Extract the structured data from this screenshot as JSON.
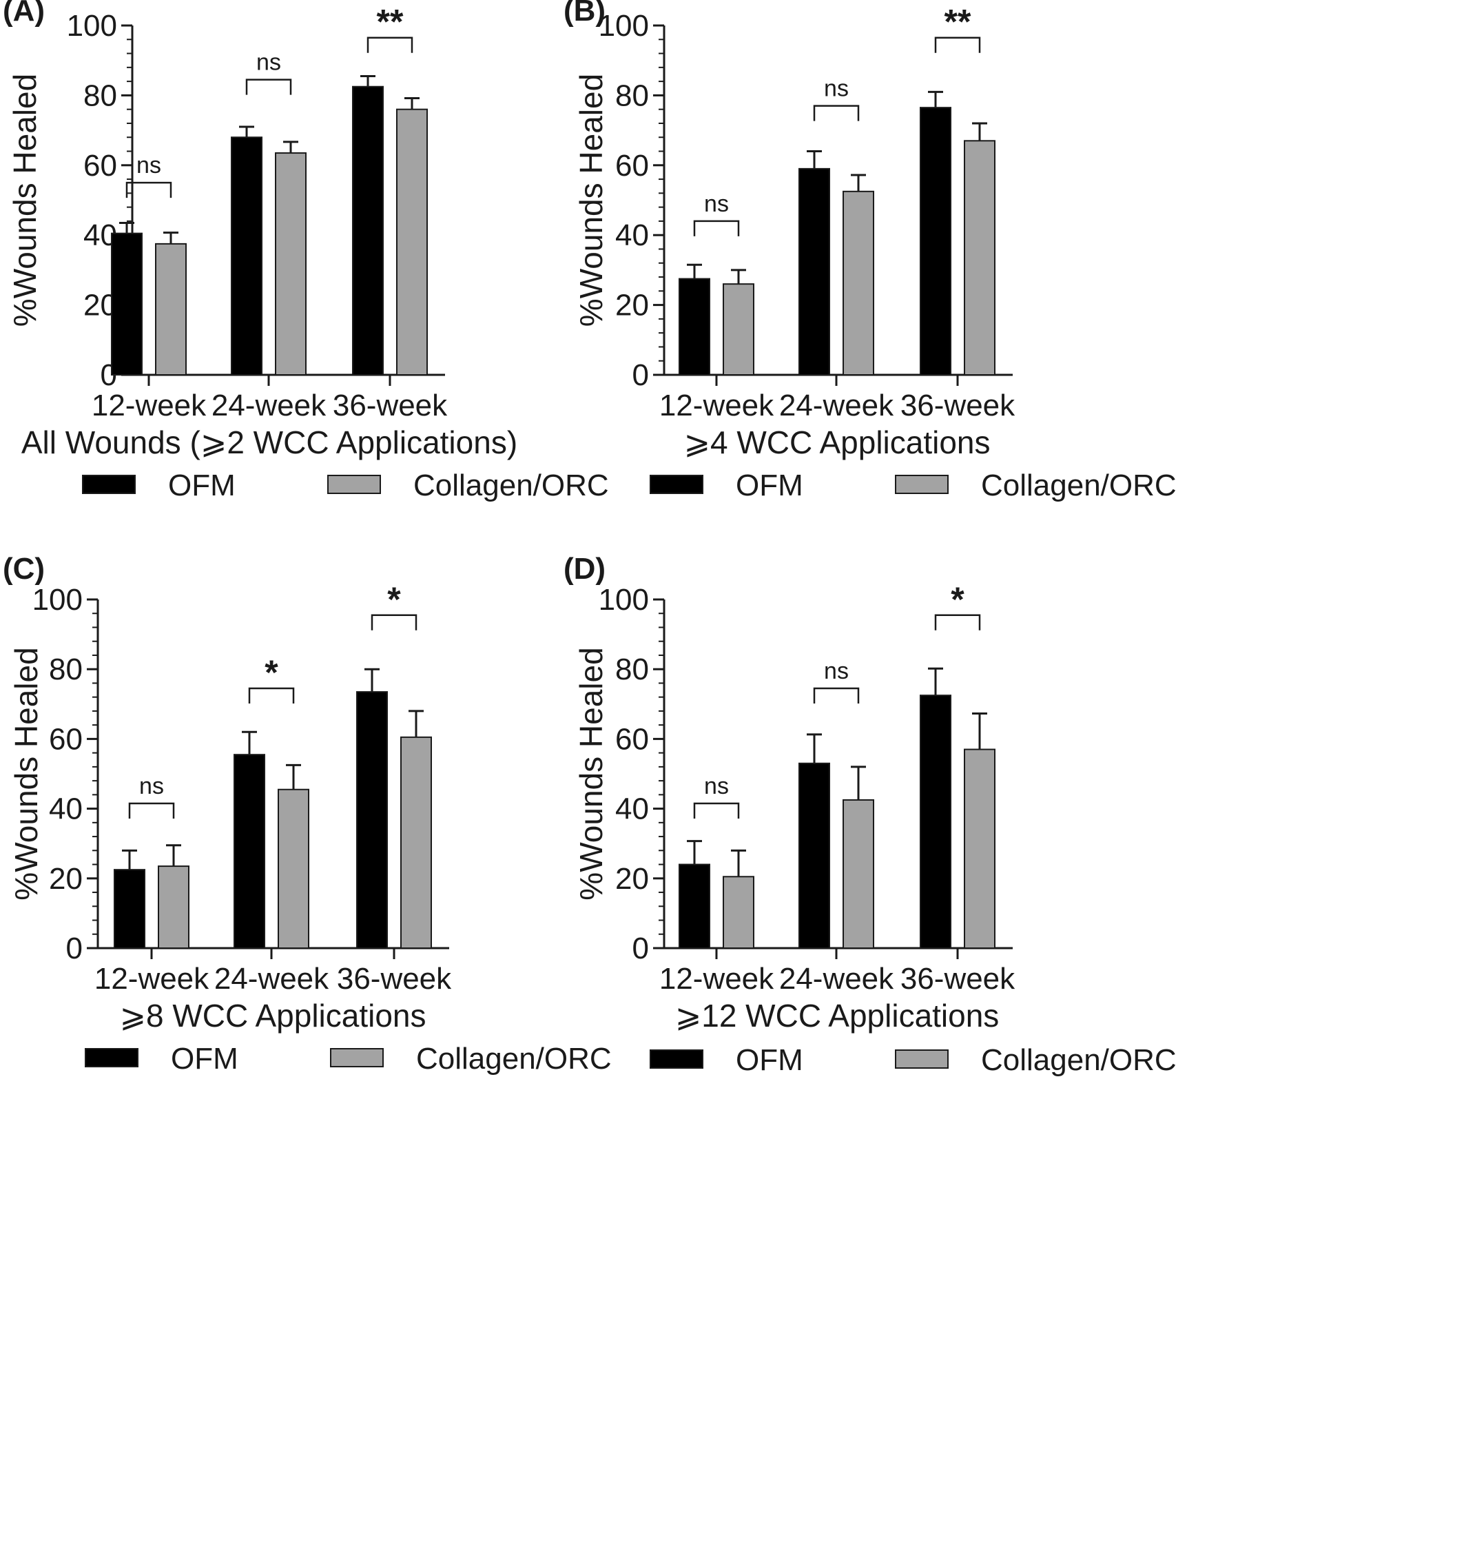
{
  "colors": {
    "OFM": "#000000",
    "Collagen/ORC": "#a3a3a3",
    "axis": "#1a1a1a"
  },
  "chart_data": [
    {
      "type": "bar",
      "panel": "(A)",
      "xlabel": "All Wounds (⩾2 WCC Applications)",
      "ylabel": "%Wounds Healed",
      "ylim": [
        0,
        100
      ],
      "yticks": [
        0,
        20,
        40,
        60,
        80,
        100
      ],
      "categories": [
        "12-week",
        "24-week",
        "36-week"
      ],
      "series": [
        {
          "name": "OFM",
          "values": [
            40.5,
            68,
            82.5
          ],
          "errors": [
            3,
            3,
            3
          ]
        },
        {
          "name": "Collagen/ORC",
          "values": [
            37.5,
            63.5,
            76
          ],
          "errors": [
            3.2,
            3.2,
            3.2
          ]
        }
      ],
      "significance": [
        "ns",
        "ns",
        "**"
      ],
      "bracket_y": [
        55,
        84.5,
        96.5
      ],
      "legend": [
        "OFM",
        "Collagen/ORC"
      ],
      "legend_position": "bottom"
    },
    {
      "type": "bar",
      "panel": "(B)",
      "xlabel": "⩾4 WCC Applications",
      "ylabel": "%Wounds Healed",
      "ylim": [
        0,
        100
      ],
      "yticks": [
        0,
        20,
        40,
        60,
        80,
        100
      ],
      "categories": [
        "12-week",
        "24-week",
        "36-week"
      ],
      "series": [
        {
          "name": "OFM",
          "values": [
            27.5,
            59,
            76.5
          ],
          "errors": [
            4,
            5,
            4.5
          ]
        },
        {
          "name": "Collagen/ORC",
          "values": [
            26,
            52.5,
            67
          ],
          "errors": [
            4,
            4.7,
            5
          ]
        }
      ],
      "significance": [
        "ns",
        "ns",
        "**"
      ],
      "bracket_y": [
        44,
        77,
        96.5
      ],
      "legend": [
        "OFM",
        "Collagen/ORC"
      ],
      "legend_position": "bottom"
    },
    {
      "type": "bar",
      "panel": "(C)",
      "xlabel": "⩾8 WCC Applications",
      "ylabel": "%Wounds Healed",
      "ylim": [
        0,
        100
      ],
      "yticks": [
        0,
        20,
        40,
        60,
        80,
        100
      ],
      "categories": [
        "12-week",
        "24-week",
        "36-week"
      ],
      "series": [
        {
          "name": "OFM",
          "values": [
            22.5,
            55.5,
            73.5
          ],
          "errors": [
            5.5,
            6.5,
            6.5
          ]
        },
        {
          "name": "Collagen/ORC",
          "values": [
            23.5,
            45.5,
            60.5
          ],
          "errors": [
            6,
            7,
            7.5
          ]
        }
      ],
      "significance": [
        "ns",
        "*",
        "*"
      ],
      "bracket_y": [
        41.5,
        74.5,
        95.5
      ],
      "legend": [
        "OFM",
        "Collagen/ORC"
      ],
      "legend_position": "bottom"
    },
    {
      "type": "bar",
      "panel": "(D)",
      "xlabel": "⩾12 WCC Applications",
      "ylabel": "%Wounds Healed",
      "ylim": [
        0,
        100
      ],
      "yticks": [
        0,
        20,
        40,
        60,
        80,
        100
      ],
      "categories": [
        "12-week",
        "24-week",
        "36-week"
      ],
      "series": [
        {
          "name": "OFM",
          "values": [
            24,
            53,
            72.5
          ],
          "errors": [
            6.7,
            8.3,
            7.7
          ]
        },
        {
          "name": "Collagen/ORC",
          "values": [
            20.5,
            42.5,
            57
          ],
          "errors": [
            7.5,
            9.5,
            10.3
          ]
        }
      ],
      "significance": [
        "ns",
        "ns",
        "*"
      ],
      "bracket_y": [
        41.5,
        74.5,
        95.5
      ],
      "legend": [
        "OFM",
        "Collagen/ORC"
      ],
      "legend_position": "bottom"
    }
  ]
}
